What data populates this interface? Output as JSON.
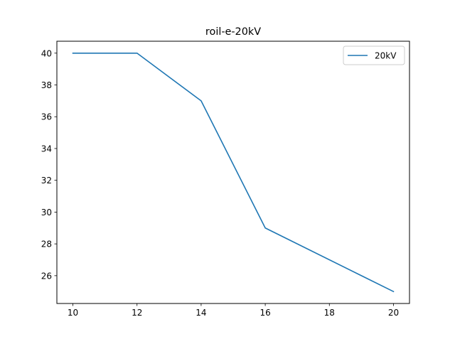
{
  "chart_data": {
    "type": "line",
    "title": "roil-e-20kV",
    "xlabel": "",
    "ylabel": "",
    "xlim": [
      9.5,
      20.5
    ],
    "ylim": [
      24.25,
      40.75
    ],
    "xticks": [
      10,
      12,
      14,
      16,
      18,
      20
    ],
    "yticks": [
      26,
      28,
      30,
      32,
      34,
      36,
      38,
      40
    ],
    "grid": false,
    "legend_position": "top-right",
    "series": [
      {
        "name": "20kV",
        "color": "#1f77b4",
        "x": [
          10,
          12,
          14,
          16,
          20
        ],
        "y": [
          40,
          40,
          37,
          29,
          25
        ]
      }
    ]
  }
}
